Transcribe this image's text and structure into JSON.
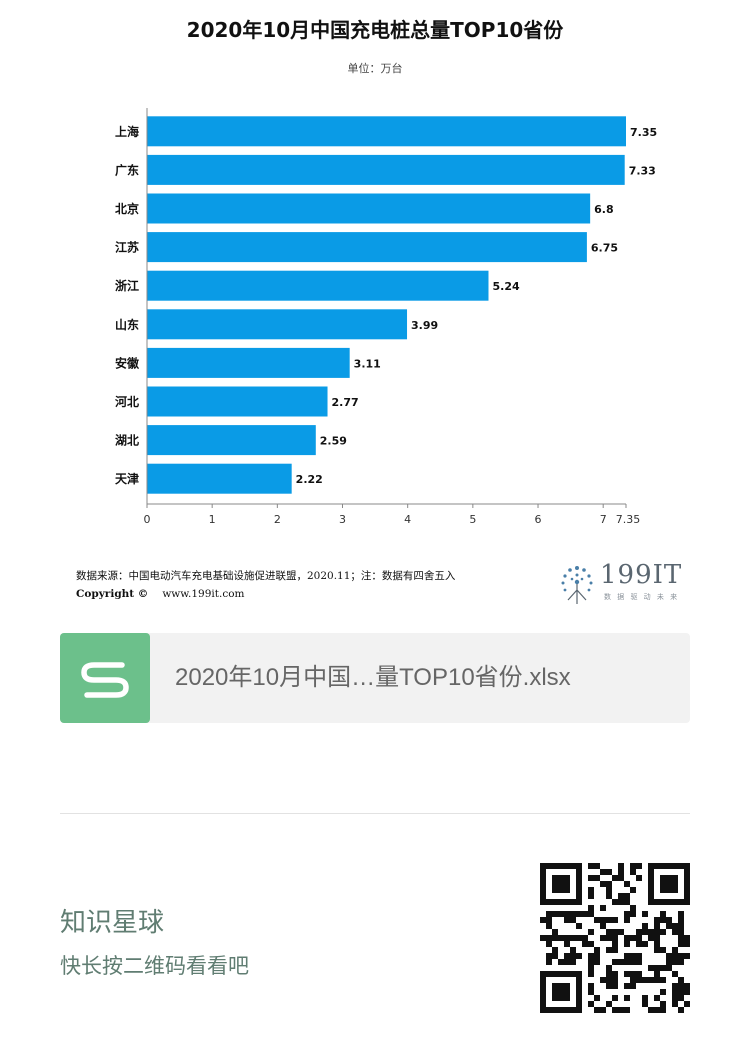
{
  "chart_data": {
    "type": "bar",
    "orientation": "horizontal",
    "title": "2020年10月中国充电桩总量TOP10省份",
    "subtitle": "单位：万台",
    "categories": [
      "上海",
      "广东",
      "北京",
      "江苏",
      "浙江",
      "山东",
      "安徽",
      "河北",
      "湖北",
      "天津"
    ],
    "values": [
      7.35,
      7.33,
      6.8,
      6.75,
      5.24,
      3.99,
      3.11,
      2.77,
      2.59,
      2.22
    ],
    "value_labels": [
      "7.35",
      "7.33",
      "6.8",
      "6.75",
      "5.24",
      "3.99",
      "3.11",
      "2.77",
      "2.59",
      "2.22"
    ],
    "xlim": [
      0,
      7.35
    ],
    "xticks": [
      0,
      1,
      2,
      3,
      4,
      5,
      6,
      7,
      7.35
    ],
    "xtick_labels": [
      "0",
      "1",
      "2",
      "3",
      "4",
      "5",
      "6",
      "7",
      "7.35"
    ],
    "bar_color": "#0a9be6",
    "grid": false,
    "legend": "none"
  },
  "footer": {
    "source_note": "数据来源：中国电动汽车充电基础设施促进联盟，2020.11；注：数据有四舍五入",
    "copyright_label": "Copyright ©",
    "website": "www.199it.com",
    "logo_text": "199IT",
    "logo_slogan": "数 据 驱 动 未 来"
  },
  "attachment": {
    "file_name": "2020年10月中国…量TOP10省份.xlsx",
    "icon": "spreadsheet-s-icon",
    "icon_color": "#6cc08b"
  },
  "promo": {
    "title": "知识星球",
    "subtitle": "快长按二维码看看吧",
    "qr_icon": "qr-code-icon",
    "text_color": "#607d72"
  }
}
